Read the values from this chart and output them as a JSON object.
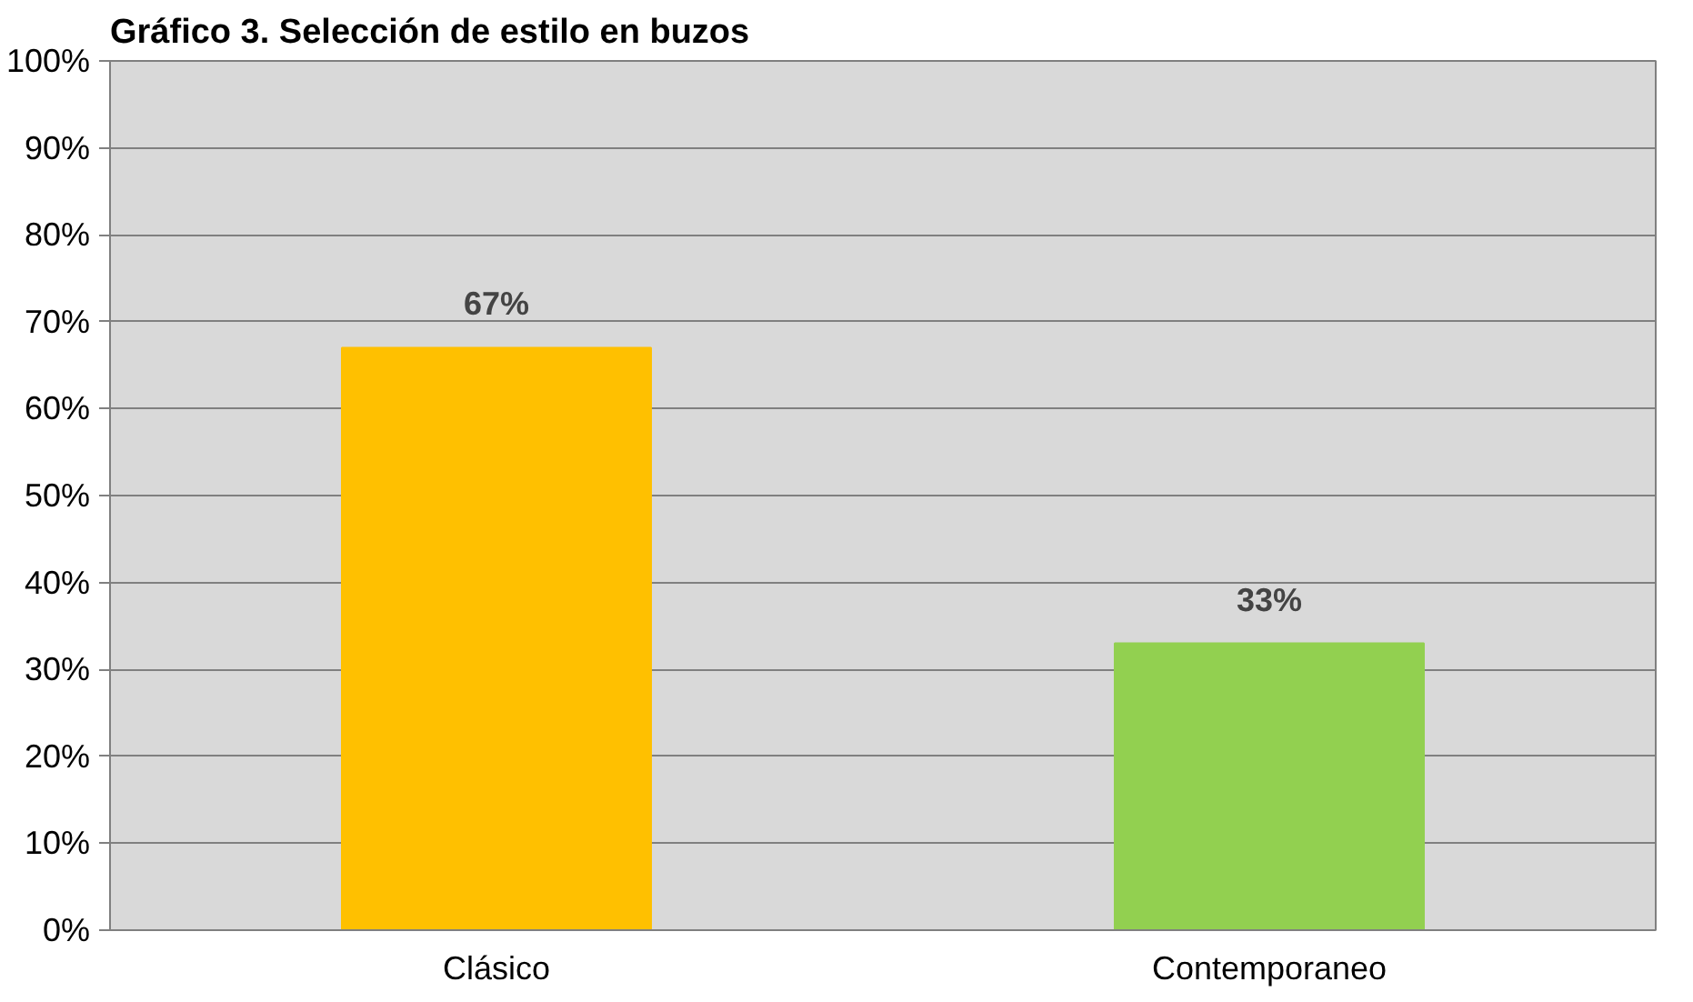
{
  "chart_data": {
    "type": "bar",
    "title": "Gráfico 3. Selección de estilo en buzos",
    "categories": [
      "Clásico",
      "Contemporaneo"
    ],
    "values": [
      67,
      33
    ],
    "colors": [
      "#ffc000",
      "#92d050"
    ],
    "value_labels": [
      "67%",
      "33%"
    ],
    "ylim": [
      0,
      100
    ],
    "yticks": [
      {
        "value": 0,
        "label": "0%"
      },
      {
        "value": 10,
        "label": "10%"
      },
      {
        "value": 20,
        "label": "20%"
      },
      {
        "value": 30,
        "label": "30%"
      },
      {
        "value": 40,
        "label": "40%"
      },
      {
        "value": 50,
        "label": "50%"
      },
      {
        "value": 60,
        "label": "60%"
      },
      {
        "value": 70,
        "label": "70%"
      },
      {
        "value": 80,
        "label": "80%"
      },
      {
        "value": 90,
        "label": "90%"
      },
      {
        "value": 100,
        "label": "100%"
      }
    ],
    "grid": "y"
  }
}
